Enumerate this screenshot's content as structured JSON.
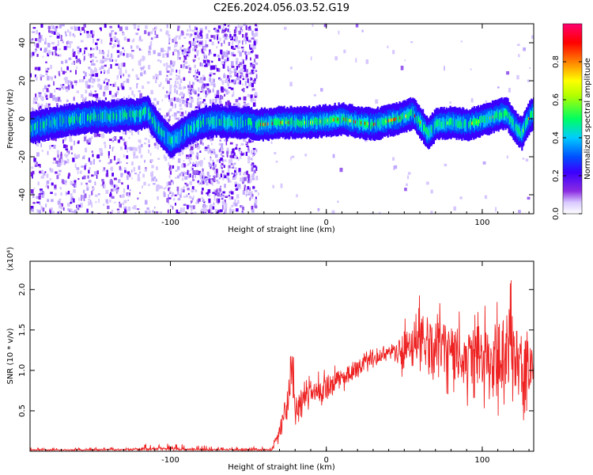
{
  "title": "C2E6.2024.056.03.52.G19",
  "chart_data": [
    {
      "type": "heatmap",
      "name": "spectrogram",
      "xlabel": "Height of straight line (km)",
      "ylabel": "Frequency (Hz)",
      "xlim": [
        -190,
        133
      ],
      "ylim": [
        -50,
        50
      ],
      "x_ticks": [
        -100,
        0,
        100
      ],
      "y_ticks": [
        -40,
        -20,
        0,
        20,
        40
      ],
      "grid": false,
      "colorbar": {
        "label": "Normalized spectral amplitude",
        "range": [
          0,
          1
        ],
        "ticks": [
          0.0,
          0.2,
          0.4,
          0.6,
          0.8
        ],
        "colormap": [
          "#ffffff",
          "#d8c8ff",
          "#8a2be2",
          "#3a00ff",
          "#0050ff",
          "#00ccff",
          "#00ff60",
          "#b0ff00",
          "#ffff00",
          "#ff8000",
          "#ff0000",
          "#ff0070"
        ]
      },
      "ridge_center_hz": [
        [
          -190,
          -5
        ],
        [
          -180,
          -3
        ],
        [
          -170,
          -1
        ],
        [
          -160,
          0
        ],
        [
          -150,
          1
        ],
        [
          -140,
          1
        ],
        [
          -130,
          2
        ],
        [
          -120,
          2
        ],
        [
          -115,
          4
        ],
        [
          -110,
          -3
        ],
        [
          -105,
          -8
        ],
        [
          -100,
          -12
        ],
        [
          -95,
          -10
        ],
        [
          -90,
          -6
        ],
        [
          -85,
          -4
        ],
        [
          -80,
          -2
        ],
        [
          -70,
          -1
        ],
        [
          -60,
          -2
        ],
        [
          -50,
          -2
        ],
        [
          -45,
          -3
        ],
        [
          -40,
          -3
        ],
        [
          -30,
          -2
        ],
        [
          -20,
          -2
        ],
        [
          -10,
          -2
        ],
        [
          0,
          -1
        ],
        [
          10,
          0
        ],
        [
          20,
          -2
        ],
        [
          30,
          -3
        ],
        [
          40,
          -1
        ],
        [
          50,
          1
        ],
        [
          55,
          3
        ],
        [
          60,
          -2
        ],
        [
          65,
          -8
        ],
        [
          70,
          -3
        ],
        [
          80,
          -2
        ],
        [
          90,
          -3
        ],
        [
          100,
          -1
        ],
        [
          110,
          2
        ],
        [
          115,
          3
        ],
        [
          120,
          -3
        ],
        [
          125,
          -8
        ],
        [
          130,
          1
        ],
        [
          133,
          3
        ]
      ]
    },
    {
      "type": "line",
      "name": "snr",
      "xlabel": "Height of straight line (km)",
      "ylabel": "SNR (10 * v/v)",
      "y_multiplier": "(x10⁴)",
      "xlim": [
        -190,
        133
      ],
      "ylim": [
        0,
        2.35
      ],
      "x_ticks": [
        -100,
        0,
        100
      ],
      "y_ticks": [
        0.5,
        1.0,
        1.5,
        2.0
      ],
      "grid": false,
      "line_color": "#ee2222",
      "baseline": [
        [
          -190,
          0.02
        ],
        [
          -35,
          0.02
        ]
      ],
      "envelope": [
        [
          -190,
          0.0,
          0.05
        ],
        [
          -170,
          0.0,
          0.04
        ],
        [
          -150,
          0.0,
          0.05
        ],
        [
          -120,
          0.0,
          0.08
        ],
        [
          -100,
          0.0,
          0.12
        ],
        [
          -90,
          0.0,
          0.08
        ],
        [
          -60,
          0.0,
          0.06
        ],
        [
          -35,
          0.0,
          0.05
        ],
        [
          -30,
          0.1,
          0.45
        ],
        [
          -25,
          0.2,
          0.9
        ],
        [
          -22,
          0.3,
          1.7
        ],
        [
          -20,
          0.3,
          0.8
        ],
        [
          -15,
          0.4,
          0.9
        ],
        [
          -10,
          0.5,
          0.95
        ],
        [
          0,
          0.55,
          1.05
        ],
        [
          10,
          0.7,
          1.1
        ],
        [
          20,
          0.85,
          1.2
        ],
        [
          30,
          1.0,
          1.3
        ],
        [
          40,
          1.1,
          1.35
        ],
        [
          50,
          0.8,
          1.7
        ],
        [
          60,
          0.7,
          2.0
        ],
        [
          70,
          0.6,
          1.9
        ],
        [
          80,
          0.6,
          1.8
        ],
        [
          90,
          0.55,
          1.7
        ],
        [
          100,
          0.5,
          1.9
        ],
        [
          110,
          0.4,
          1.95
        ],
        [
          120,
          0.2,
          2.3
        ],
        [
          125,
          0.3,
          1.9
        ],
        [
          130,
          0.5,
          1.6
        ],
        [
          133,
          0.6,
          1.5
        ]
      ]
    }
  ]
}
